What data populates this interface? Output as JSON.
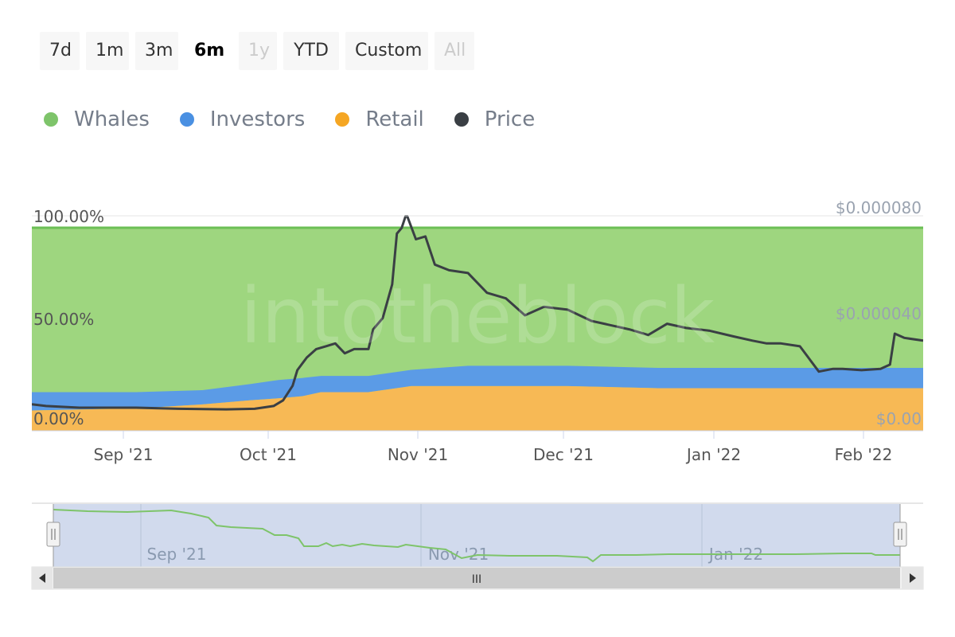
{
  "range_selector": {
    "buttons": [
      {
        "label": "7d",
        "state": "normal"
      },
      {
        "label": "1m",
        "state": "normal"
      },
      {
        "label": "3m",
        "state": "normal"
      },
      {
        "label": "6m",
        "state": "active"
      },
      {
        "label": "1y",
        "state": "disabled"
      },
      {
        "label": "YTD",
        "state": "normal"
      },
      {
        "label": "Custom",
        "state": "normal"
      },
      {
        "label": "All",
        "state": "disabled"
      }
    ]
  },
  "chart_data": {
    "type": "area",
    "watermark": "intotheblock",
    "legend": [
      {
        "name": "Whales",
        "color": "#7ec46a"
      },
      {
        "name": "Investors",
        "color": "#4a90e2"
      },
      {
        "name": "Retail",
        "color": "#f5a623"
      },
      {
        "name": "Price",
        "color": "#3a3f44"
      }
    ],
    "x_ticks": [
      "Sep '21",
      "Oct '21",
      "Nov '21",
      "Dec '21",
      "Jan '22",
      "Feb '22"
    ],
    "y_left_ticks": [
      "100.00%",
      "50.00%",
      "0.00%"
    ],
    "y_right_ticks": [
      "$0.000080",
      "$0.000040",
      "$0.00"
    ],
    "ylim_left": [
      0,
      100
    ],
    "ylim_right": [
      0,
      8e-05
    ],
    "colors": {
      "whales": "#9ed67f",
      "investors": "#5b9be6",
      "retail": "#f7b955",
      "price": "#3a3f44",
      "whales_line": "#6cbf56"
    },
    "x_range": [
      "2021-08-10",
      "2022-02-14"
    ],
    "stack_breakpoints": {
      "x": [
        "2021-08-10",
        "2021-09-01",
        "2021-09-15",
        "2021-09-25",
        "2021-10-01",
        "2021-10-06",
        "2021-10-10",
        "2021-10-20",
        "2021-10-29",
        "2021-11-10",
        "2021-12-01",
        "2021-12-20",
        "2022-01-15",
        "2022-02-14"
      ],
      "retail_pct": [
        10,
        11,
        13,
        15,
        16,
        17,
        19,
        19,
        22,
        22,
        22,
        21,
        21,
        21
      ],
      "retail_investors_pct": [
        19,
        19,
        20,
        23,
        25,
        26,
        27,
        27,
        30,
        32,
        32,
        31,
        31,
        31
      ]
    },
    "price_series": {
      "x": [
        "2021-08-10",
        "2021-08-13",
        "2021-08-20",
        "2021-09-01",
        "2021-09-10",
        "2021-09-20",
        "2021-09-26",
        "2021-09-30",
        "2021-10-02",
        "2021-10-04",
        "2021-10-05",
        "2021-10-07",
        "2021-10-09",
        "2021-10-11",
        "2021-10-13",
        "2021-10-15",
        "2021-10-17",
        "2021-10-20",
        "2021-10-21",
        "2021-10-23",
        "2021-10-25",
        "2021-10-26",
        "2021-10-27",
        "2021-10-28",
        "2021-10-30",
        "2021-11-01",
        "2021-11-03",
        "2021-11-06",
        "2021-11-10",
        "2021-11-14",
        "2021-11-18",
        "2021-11-22",
        "2021-11-26",
        "2021-12-01",
        "2021-12-06",
        "2021-12-10",
        "2021-12-14",
        "2021-12-18",
        "2021-12-22",
        "2021-12-26",
        "2021-12-31",
        "2022-01-05",
        "2022-01-09",
        "2022-01-12",
        "2022-01-15",
        "2022-01-19",
        "2022-01-23",
        "2022-01-26",
        "2022-01-28",
        "2022-02-01",
        "2022-02-05",
        "2022-02-07",
        "2022-02-08",
        "2022-02-10",
        "2022-02-14"
      ],
      "y": [
        9.4e-06,
        8.8e-06,
        8.2e-06,
        8.2e-06,
        7.8e-06,
        7.6e-06,
        7.8e-06,
        8.8e-06,
        1.08e-05,
        1.6e-05,
        2.15e-05,
        2.6e-05,
        2.9e-05,
        3e-05,
        3.1e-05,
        2.75e-05,
        2.9e-05,
        2.9e-05,
        3.6e-05,
        4e-05,
        5.2e-05,
        7e-05,
        7.2e-05,
        7.7e-05,
        6.8e-05,
        6.9e-05,
        5.9e-05,
        5.7e-05,
        5.6e-05,
        4.9e-05,
        4.7e-05,
        4.1e-05,
        4.4e-05,
        4.3e-05,
        3.9e-05,
        3.75e-05,
        3.6e-05,
        3.4e-05,
        3.8e-05,
        3.65e-05,
        3.55e-05,
        3.35e-05,
        3.2e-05,
        3.1e-05,
        3.1e-05,
        3e-05,
        2.1e-05,
        2.2e-05,
        2.2e-05,
        2.15e-05,
        2.2e-05,
        2.35e-05,
        3.45e-05,
        3.3e-05,
        3.2e-05
      ]
    }
  },
  "navigator": {
    "labels": [
      "Sep '21",
      "Nov '21",
      "Jan '22"
    ],
    "scroll_grip": "III",
    "left_arrow": "◀",
    "right_arrow": "▶",
    "handle_grip": "||"
  }
}
